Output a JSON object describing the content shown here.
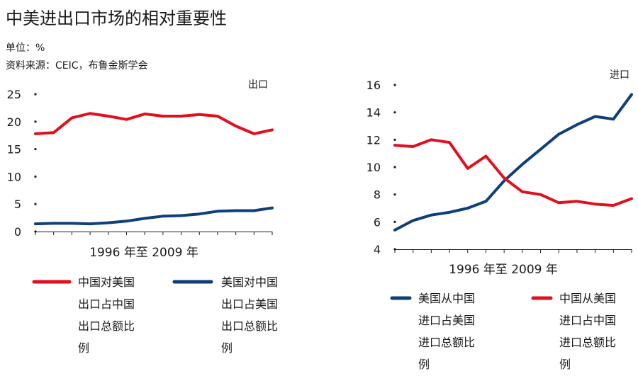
{
  "title": "中美进出口市场的相对重要性",
  "unit": "单位：%",
  "source": "资料来源：CEIC，布鲁金斯学会",
  "colors": {
    "red": "#e0101e",
    "blue": "#0f3f7a",
    "axis": "#1a1a1a"
  },
  "chart_data": [
    {
      "type": "line",
      "panel_label": "出口",
      "xlabel": "1996 年至 2009 年",
      "x": [
        1996,
        1997,
        1998,
        1999,
        2000,
        2001,
        2002,
        2003,
        2004,
        2005,
        2006,
        2007,
        2008,
        2009
      ],
      "ylim": [
        0,
        25
      ],
      "yticks": [
        "0",
        "5",
        "10",
        "15",
        "20",
        "25"
      ],
      "series": [
        {
          "name": "中国对美国出口占中国出口总额比例",
          "color": "red",
          "values": [
            17.8,
            18.0,
            20.7,
            21.5,
            21.0,
            20.4,
            21.4,
            21.0,
            21.0,
            21.3,
            21.0,
            19.2,
            17.8,
            18.5
          ]
        },
        {
          "name": "美国对中国出口占美国出口总额比例",
          "color": "blue",
          "values": [
            1.4,
            1.5,
            1.5,
            1.4,
            1.6,
            1.9,
            2.4,
            2.8,
            2.9,
            3.2,
            3.7,
            3.8,
            3.8,
            4.3
          ]
        }
      ],
      "legend": [
        {
          "lines": [
            "中国对美国",
            "出口占中国",
            "出口总额比",
            "例"
          ],
          "color": "red"
        },
        {
          "lines": [
            "美国对中国",
            "出口占美国",
            "出口总额比",
            "例"
          ],
          "color": "blue"
        }
      ]
    },
    {
      "type": "line",
      "panel_label": "进口",
      "xlabel": "1996 年至 2009 年",
      "x": [
        1996,
        1997,
        1998,
        1999,
        2000,
        2001,
        2002,
        2003,
        2004,
        2005,
        2006,
        2007,
        2008,
        2009
      ],
      "ylim": [
        4,
        16
      ],
      "yticks": [
        "4",
        "6",
        "8",
        "10",
        "12",
        "14",
        "16"
      ],
      "series": [
        {
          "name": "美国从中国进口占美国进口总额比例",
          "color": "blue",
          "values": [
            5.4,
            6.1,
            6.5,
            6.7,
            7.0,
            7.5,
            9.0,
            10.2,
            11.3,
            12.4,
            13.1,
            13.7,
            13.5,
            15.3
          ]
        },
        {
          "name": "中国从美国进口占中国进口总额比例",
          "color": "red",
          "values": [
            11.6,
            11.5,
            12.0,
            11.8,
            9.9,
            10.8,
            9.2,
            8.2,
            8.0,
            7.4,
            7.5,
            7.3,
            7.2,
            7.7
          ]
        }
      ],
      "legend": [
        {
          "lines": [
            "美国从中国",
            "进口占美国",
            "进口总额比",
            "例"
          ],
          "color": "blue"
        },
        {
          "lines": [
            "中国从美国",
            "进口占中国",
            "进口总额比",
            "例"
          ],
          "color": "red"
        }
      ]
    }
  ]
}
